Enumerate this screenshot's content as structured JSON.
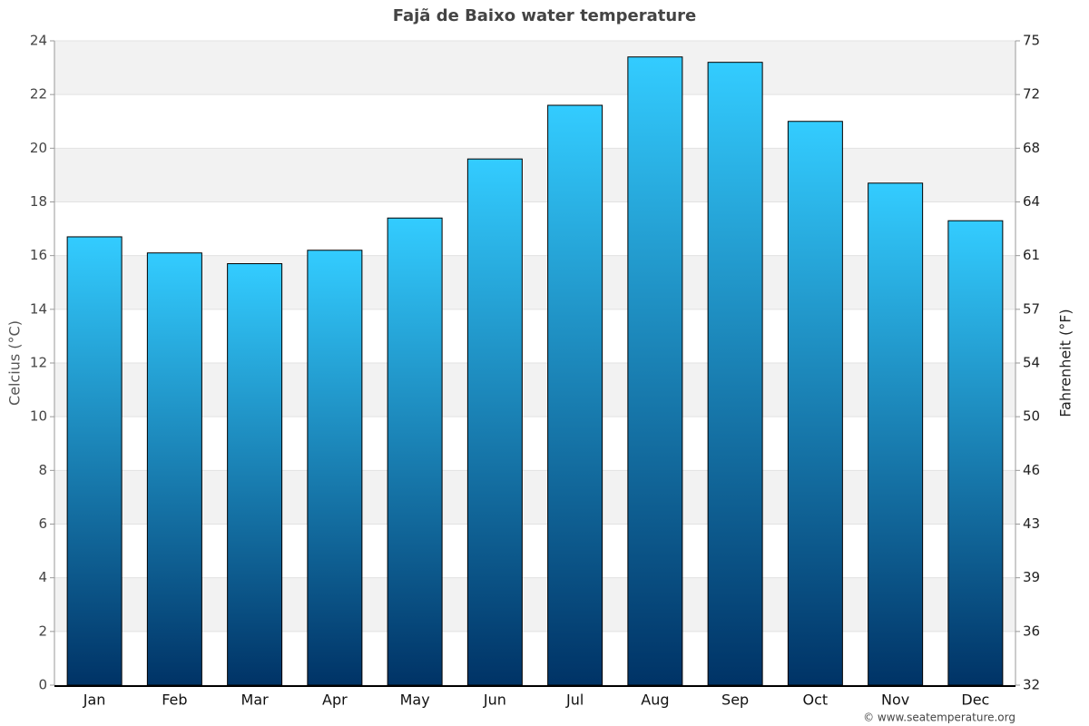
{
  "chart_data": {
    "type": "bar",
    "title": "Fajã de Baixo water temperature",
    "categories": [
      "Jan",
      "Feb",
      "Mar",
      "Apr",
      "May",
      "Jun",
      "Jul",
      "Aug",
      "Sep",
      "Oct",
      "Nov",
      "Dec"
    ],
    "values": [
      16.7,
      16.1,
      15.7,
      16.2,
      17.4,
      19.6,
      21.6,
      23.4,
      23.2,
      21.0,
      18.7,
      17.3
    ],
    "gradient": [
      "#33ccff",
      "#003366"
    ],
    "ylabel": "Celcius (°C)",
    "y2label": "Fahrenheit (°F)",
    "ylim": [
      0,
      24
    ],
    "yticks": [
      0,
      2,
      4,
      6,
      8,
      10,
      12,
      14,
      16,
      18,
      20,
      22,
      24
    ],
    "y2lim": [
      32,
      75.2
    ],
    "y2ticks": [
      32,
      {
        "value": 35.6,
        "label": "36"
      },
      {
        "value": 39.2,
        "label": "39"
      },
      {
        "value": 42.8,
        "label": "43"
      },
      {
        "value": 46.4,
        "label": "46"
      },
      50,
      {
        "value": 53.6,
        "label": "54"
      },
      {
        "value": 57.2,
        "label": "57"
      },
      {
        "value": 60.8,
        "label": "61"
      },
      {
        "value": 64.4,
        "label": "64"
      },
      68,
      {
        "value": 71.6,
        "label": "72"
      },
      {
        "value": 75.2,
        "label": "75"
      }
    ],
    "grid": true,
    "source": "© www.seatemperature.org"
  }
}
